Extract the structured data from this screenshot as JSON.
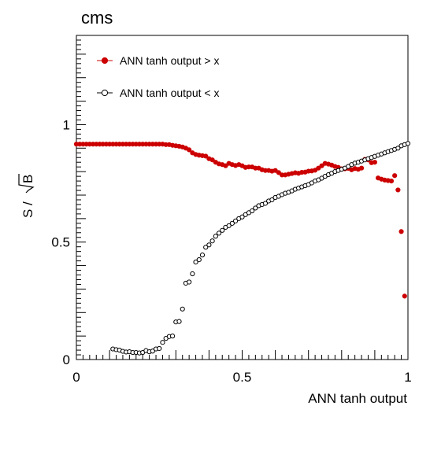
{
  "chart_data": {
    "type": "scatter",
    "title": "cms",
    "xlabel": "ANN tanh output",
    "ylabel_main": "S / ",
    "ylabel_sqrt": "B",
    "xlim": [
      0,
      1
    ],
    "ylim": [
      0,
      1.38
    ],
    "xticks": [
      {
        "value": 0,
        "label": "0"
      },
      {
        "value": 0.5,
        "label": "0.5"
      },
      {
        "value": 1,
        "label": "1"
      }
    ],
    "yticks": [
      {
        "value": 0,
        "label": "0"
      },
      {
        "value": 0.5,
        "label": "0.5"
      },
      {
        "value": 1,
        "label": "1"
      }
    ],
    "legend_position": "top-left",
    "grid": false,
    "series": [
      {
        "name": "ANN tanh output > x",
        "marker": "filled-circle",
        "color": "#cc0000",
        "x": [
          0.0,
          0.01,
          0.02,
          0.03,
          0.04,
          0.05,
          0.06,
          0.07,
          0.08,
          0.09,
          0.1,
          0.11,
          0.12,
          0.13,
          0.14,
          0.15,
          0.16,
          0.17,
          0.18,
          0.19,
          0.2,
          0.21,
          0.22,
          0.23,
          0.24,
          0.25,
          0.26,
          0.27,
          0.28,
          0.29,
          0.3,
          0.31,
          0.32,
          0.33,
          0.34,
          0.35,
          0.36,
          0.37,
          0.38,
          0.39,
          0.4,
          0.41,
          0.42,
          0.43,
          0.44,
          0.45,
          0.46,
          0.47,
          0.48,
          0.49,
          0.5,
          0.51,
          0.52,
          0.53,
          0.54,
          0.55,
          0.56,
          0.57,
          0.58,
          0.59,
          0.6,
          0.61,
          0.62,
          0.63,
          0.64,
          0.65,
          0.66,
          0.67,
          0.68,
          0.69,
          0.7,
          0.71,
          0.72,
          0.73,
          0.74,
          0.75,
          0.76,
          0.77,
          0.78,
          0.79,
          0.8,
          0.81,
          0.82,
          0.83,
          0.84,
          0.85,
          0.86,
          0.87,
          0.88,
          0.89,
          0.9,
          0.91,
          0.92,
          0.93,
          0.94,
          0.95,
          0.96,
          0.97,
          0.98,
          0.99
        ],
        "y": [
          0.917,
          0.917,
          0.917,
          0.917,
          0.917,
          0.917,
          0.917,
          0.917,
          0.917,
          0.917,
          0.917,
          0.917,
          0.917,
          0.917,
          0.917,
          0.917,
          0.917,
          0.917,
          0.917,
          0.917,
          0.917,
          0.917,
          0.917,
          0.917,
          0.917,
          0.917,
          0.917,
          0.915,
          0.915,
          0.912,
          0.91,
          0.908,
          0.905,
          0.9,
          0.893,
          0.88,
          0.873,
          0.87,
          0.868,
          0.866,
          0.855,
          0.85,
          0.84,
          0.833,
          0.83,
          0.825,
          0.835,
          0.83,
          0.826,
          0.83,
          0.825,
          0.818,
          0.82,
          0.82,
          0.815,
          0.815,
          0.808,
          0.805,
          0.805,
          0.802,
          0.805,
          0.796,
          0.786,
          0.786,
          0.789,
          0.792,
          0.795,
          0.793,
          0.797,
          0.798,
          0.802,
          0.803,
          0.806,
          0.815,
          0.825,
          0.835,
          0.832,
          0.828,
          0.822,
          0.818,
          0.812,
          0.812,
          0.814,
          0.808,
          0.813,
          0.81,
          0.815,
          0.852,
          0.85,
          0.838,
          0.84,
          0.773,
          0.768,
          0.764,
          0.762,
          0.76,
          0.783,
          0.722,
          0.545,
          0.27
        ]
      },
      {
        "name": "ANN tanh output < x",
        "marker": "open-circle",
        "color": "#000000",
        "x": [
          0.11,
          0.12,
          0.13,
          0.14,
          0.15,
          0.16,
          0.17,
          0.18,
          0.19,
          0.2,
          0.21,
          0.22,
          0.23,
          0.24,
          0.25,
          0.26,
          0.27,
          0.28,
          0.29,
          0.3,
          0.31,
          0.32,
          0.33,
          0.34,
          0.35,
          0.36,
          0.37,
          0.38,
          0.39,
          0.4,
          0.41,
          0.42,
          0.43,
          0.44,
          0.45,
          0.46,
          0.47,
          0.48,
          0.49,
          0.5,
          0.51,
          0.52,
          0.53,
          0.54,
          0.55,
          0.56,
          0.57,
          0.58,
          0.59,
          0.6,
          0.61,
          0.62,
          0.63,
          0.64,
          0.65,
          0.66,
          0.67,
          0.68,
          0.69,
          0.7,
          0.71,
          0.72,
          0.73,
          0.74,
          0.75,
          0.76,
          0.77,
          0.78,
          0.79,
          0.8,
          0.81,
          0.82,
          0.83,
          0.84,
          0.85,
          0.86,
          0.87,
          0.88,
          0.89,
          0.9,
          0.91,
          0.92,
          0.93,
          0.94,
          0.95,
          0.96,
          0.97,
          0.98,
          0.99,
          1.0
        ],
        "y": [
          0.045,
          0.042,
          0.04,
          0.035,
          0.032,
          0.033,
          0.03,
          0.03,
          0.028,
          0.03,
          0.038,
          0.033,
          0.036,
          0.045,
          0.047,
          0.073,
          0.09,
          0.098,
          0.1,
          0.16,
          0.162,
          0.215,
          0.325,
          0.33,
          0.365,
          0.415,
          0.425,
          0.445,
          0.478,
          0.488,
          0.505,
          0.525,
          0.538,
          0.55,
          0.563,
          0.57,
          0.58,
          0.59,
          0.6,
          0.607,
          0.617,
          0.625,
          0.633,
          0.645,
          0.655,
          0.66,
          0.665,
          0.675,
          0.68,
          0.69,
          0.695,
          0.702,
          0.708,
          0.712,
          0.718,
          0.725,
          0.73,
          0.735,
          0.74,
          0.745,
          0.752,
          0.76,
          0.765,
          0.772,
          0.78,
          0.787,
          0.793,
          0.8,
          0.805,
          0.81,
          0.815,
          0.822,
          0.83,
          0.836,
          0.84,
          0.845,
          0.85,
          0.855,
          0.86,
          0.865,
          0.87,
          0.875,
          0.88,
          0.885,
          0.89,
          0.895,
          0.9,
          0.91,
          0.915,
          0.92
        ]
      }
    ]
  }
}
